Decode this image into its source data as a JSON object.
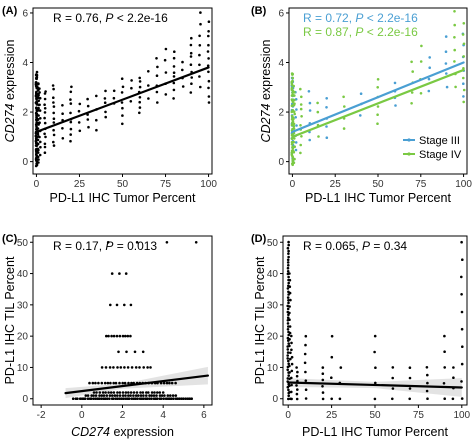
{
  "chart_data": [
    {
      "panel": "(A)",
      "type": "scatter",
      "xlabel": "PD-L1 IHC Tumor Percent",
      "ylabel_italic": "CD274",
      "ylabel_rest": " expression",
      "xlim": [
        -2,
        102
      ],
      "ylim": [
        -0.5,
        6.2
      ],
      "xticks": [
        0,
        25,
        50,
        75,
        100
      ],
      "yticks": [
        0,
        2,
        4,
        6
      ],
      "annotation": {
        "r": "R = 0.76, ",
        "p_label": "P",
        "p_rest": " < 2.2e-16",
        "color": "#000000"
      },
      "grid": false,
      "border": "box",
      "point_color": "#000000",
      "columns": [
        {
          "x": 0,
          "ymin": -0.2,
          "ymax": 3.6,
          "n": 90
        },
        {
          "x": 1,
          "ymin": 0.0,
          "ymax": 3.2,
          "n": 30
        },
        {
          "x": 2,
          "ymin": 0.3,
          "ymax": 3.0,
          "n": 12
        },
        {
          "x": 5,
          "ymin": 0.4,
          "ymax": 2.9,
          "n": 14
        },
        {
          "x": 10,
          "ymin": 0.6,
          "ymax": 3.1,
          "n": 12
        },
        {
          "x": 15,
          "ymin": 1.0,
          "ymax": 2.2,
          "n": 5
        },
        {
          "x": 20,
          "ymin": 0.8,
          "ymax": 3.0,
          "n": 10
        },
        {
          "x": 25,
          "ymin": 1.2,
          "ymax": 2.4,
          "n": 4
        },
        {
          "x": 30,
          "ymin": 1.4,
          "ymax": 2.5,
          "n": 5
        },
        {
          "x": 35,
          "ymin": 1.3,
          "ymax": 2.6,
          "n": 4
        },
        {
          "x": 40,
          "ymin": 1.8,
          "ymax": 2.9,
          "n": 5
        },
        {
          "x": 45,
          "ymin": 2.3,
          "ymax": 2.9,
          "n": 3
        },
        {
          "x": 50,
          "ymin": 1.6,
          "ymax": 3.3,
          "n": 7
        },
        {
          "x": 55,
          "ymin": 2.5,
          "ymax": 3.3,
          "n": 3
        },
        {
          "x": 60,
          "ymin": 2.0,
          "ymax": 3.4,
          "n": 8
        },
        {
          "x": 65,
          "ymin": 2.6,
          "ymax": 3.6,
          "n": 3
        },
        {
          "x": 70,
          "ymin": 2.4,
          "ymax": 4.1,
          "n": 6
        },
        {
          "x": 75,
          "ymin": 2.7,
          "ymax": 4.6,
          "n": 5
        },
        {
          "x": 80,
          "ymin": 2.6,
          "ymax": 4.4,
          "n": 8
        },
        {
          "x": 85,
          "ymin": 3.0,
          "ymax": 4.0,
          "n": 4
        },
        {
          "x": 90,
          "ymin": 2.8,
          "ymax": 5.0,
          "n": 9
        },
        {
          "x": 95,
          "ymin": 3.0,
          "ymax": 6.0,
          "n": 8
        },
        {
          "x": 100,
          "ymin": 2.4,
          "ymax": 5.6,
          "n": 12
        }
      ],
      "fit": [
        {
          "x1": 0,
          "y1": 1.2,
          "x2": 100,
          "y2": 3.8,
          "color": "#000000"
        }
      ]
    },
    {
      "panel": "(B)",
      "type": "scatter",
      "xlabel": "PD-L1 IHC Tumor Percent",
      "ylabel_italic": "CD274",
      "ylabel_rest": " expression",
      "xlim": [
        -2,
        102
      ],
      "ylim": [
        -0.5,
        6.2
      ],
      "xticks": [
        0,
        25,
        50,
        75,
        100
      ],
      "yticks": [
        0,
        2,
        4,
        6
      ],
      "annotations": [
        {
          "r": "R = 0.72, ",
          "p_label": "P",
          "p_rest": " < 2.2e-16",
          "color": "#4a9fd3"
        },
        {
          "r": "R = 0.87, ",
          "p_label": "P",
          "p_rest": " < 2.2e-16",
          "color": "#7ac943"
        }
      ],
      "grid": false,
      "border": "box",
      "legend": {
        "position": "bottom-right",
        "items": [
          {
            "label": "Stage III",
            "color": "#4a9fd3"
          },
          {
            "label": "Stage IV",
            "color": "#7ac943"
          }
        ]
      },
      "series": [
        {
          "name": "Stage III",
          "color": "#4a9fd3",
          "columns": [
            {
              "x": 0,
              "ymin": 0.0,
              "ymax": 3.4,
              "n": 35
            },
            {
              "x": 2,
              "ymin": 0.4,
              "ymax": 2.8,
              "n": 8
            },
            {
              "x": 10,
              "ymin": 0.8,
              "ymax": 2.8,
              "n": 6
            },
            {
              "x": 20,
              "ymin": 1.0,
              "ymax": 2.6,
              "n": 5
            },
            {
              "x": 40,
              "ymin": 1.8,
              "ymax": 2.8,
              "n": 3
            },
            {
              "x": 60,
              "ymin": 2.2,
              "ymax": 3.2,
              "n": 4
            },
            {
              "x": 80,
              "ymin": 2.8,
              "ymax": 4.2,
              "n": 4
            },
            {
              "x": 90,
              "ymin": 3.0,
              "ymax": 5.0,
              "n": 5
            },
            {
              "x": 100,
              "ymin": 2.6,
              "ymax": 5.2,
              "n": 6
            }
          ]
        },
        {
          "name": "Stage IV",
          "color": "#7ac943",
          "columns": [
            {
              "x": 0,
              "ymin": -0.2,
              "ymax": 3.6,
              "n": 55
            },
            {
              "x": 1,
              "ymin": 0.0,
              "ymax": 3.0,
              "n": 20
            },
            {
              "x": 5,
              "ymin": 0.4,
              "ymax": 2.9,
              "n": 10
            },
            {
              "x": 15,
              "ymin": 1.0,
              "ymax": 2.4,
              "n": 4
            },
            {
              "x": 30,
              "ymin": 1.4,
              "ymax": 2.6,
              "n": 4
            },
            {
              "x": 50,
              "ymin": 1.6,
              "ymax": 3.3,
              "n": 6
            },
            {
              "x": 70,
              "ymin": 2.4,
              "ymax": 4.1,
              "n": 5
            },
            {
              "x": 75,
              "ymin": 2.7,
              "ymax": 4.6,
              "n": 4
            },
            {
              "x": 95,
              "ymin": 3.0,
              "ymax": 6.0,
              "n": 7
            },
            {
              "x": 100,
              "ymin": 2.4,
              "ymax": 5.6,
              "n": 8
            }
          ]
        }
      ],
      "fit": [
        {
          "x1": 0,
          "y1": 1.2,
          "x2": 100,
          "y2": 4.0,
          "color": "#4a9fd3"
        },
        {
          "x1": 0,
          "y1": 1.0,
          "x2": 100,
          "y2": 3.7,
          "color": "#7ac943"
        }
      ]
    },
    {
      "panel": "(C)",
      "type": "scatter",
      "xlabel_italic": "CD274",
      "xlabel_rest": " expression",
      "ylabel": "PD-L1 IHC TIL Percent",
      "xlim": [
        -2.4,
        6.4
      ],
      "ylim": [
        -2,
        52
      ],
      "xticks": [
        -2,
        0,
        2,
        4,
        6
      ],
      "yticks": [
        0,
        10,
        20,
        30,
        40,
        50
      ],
      "annotation": {
        "r": "R = 0.17, ",
        "p_label": "P",
        "p_rest": " = 0.013",
        "color": "#000000"
      },
      "grid": false,
      "border": "box",
      "point_color": "#000000",
      "rows": [
        {
          "y": 0,
          "xmin": -0.4,
          "xmax": 5.4,
          "n": 60
        },
        {
          "y": 1,
          "xmin": 0.2,
          "xmax": 4.6,
          "n": 35
        },
        {
          "y": 2,
          "xmin": 0.6,
          "xmax": 4.0,
          "n": 25
        },
        {
          "y": 5,
          "xmin": 0.4,
          "xmax": 4.6,
          "n": 30
        },
        {
          "y": 10,
          "xmin": 1.0,
          "xmax": 3.4,
          "n": 14
        },
        {
          "y": 15,
          "xmin": 1.8,
          "xmax": 3.0,
          "n": 4
        },
        {
          "y": 20,
          "xmin": 1.2,
          "xmax": 2.4,
          "n": 10
        },
        {
          "y": 30,
          "xmin": 1.4,
          "xmax": 2.4,
          "n": 4
        },
        {
          "y": 40,
          "xmin": 1.5,
          "xmax": 2.2,
          "n": 3
        },
        {
          "y": 50,
          "xmin": 1.3,
          "xmax": 5.6,
          "n": 4
        }
      ],
      "fit": [
        {
          "x1": -0.8,
          "y1": 1.8,
          "x2": 6.2,
          "y2": 7.4,
          "color": "#000000"
        }
      ],
      "band": [
        {
          "x": -0.8,
          "lo": 0.2,
          "hi": 3.4
        },
        {
          "x": 2.0,
          "lo": 3.2,
          "hi": 4.8
        },
        {
          "x": 6.2,
          "lo": 4.6,
          "hi": 10.2
        }
      ]
    },
    {
      "panel": "(D)",
      "type": "scatter",
      "xlabel": "PD-L1 IHC Tumor Percent",
      "ylabel": "PD-L1 IHC TIL Percent",
      "xlim": [
        -3,
        103
      ],
      "ylim": [
        -2,
        52
      ],
      "xticks": [
        0,
        25,
        50,
        75,
        100
      ],
      "yticks": [
        0,
        10,
        20,
        30,
        40,
        50
      ],
      "annotation": {
        "r": "R = 0.065, ",
        "p_label": "P",
        "p_rest": " = 0.34",
        "color": "#000000"
      },
      "grid": false,
      "border": "box",
      "point_color": "#000000",
      "columns": [
        {
          "x": 0,
          "ymin": 0,
          "ymax": 50,
          "n": 55
        },
        {
          "x": 1,
          "ymin": 0,
          "ymax": 40,
          "n": 20
        },
        {
          "x": 2,
          "ymin": 0,
          "ymax": 20,
          "n": 10
        },
        {
          "x": 5,
          "ymin": 0,
          "ymax": 10,
          "n": 8
        },
        {
          "x": 10,
          "ymin": 0,
          "ymax": 20,
          "n": 8
        },
        {
          "x": 20,
          "ymin": 0,
          "ymax": 10,
          "n": 6
        },
        {
          "x": 25,
          "ymin": 0,
          "ymax": 20,
          "n": 4
        },
        {
          "x": 30,
          "ymin": 0,
          "ymax": 10,
          "n": 3
        },
        {
          "x": 50,
          "ymin": 0,
          "ymax": 20,
          "n": 5
        },
        {
          "x": 60,
          "ymin": 0,
          "ymax": 10,
          "n": 4
        },
        {
          "x": 70,
          "ymin": 0,
          "ymax": 10,
          "n": 4
        },
        {
          "x": 80,
          "ymin": 0,
          "ymax": 10,
          "n": 5
        },
        {
          "x": 90,
          "ymin": 0,
          "ymax": 20,
          "n": 5
        },
        {
          "x": 95,
          "ymin": 0,
          "ymax": 10,
          "n": 4
        },
        {
          "x": 100,
          "ymin": 0,
          "ymax": 50,
          "n": 10
        }
      ],
      "fit": [
        {
          "x1": 0,
          "y1": 5.2,
          "x2": 100,
          "y2": 3.6,
          "color": "#000000"
        }
      ],
      "band": [
        {
          "x": 0,
          "lo": 3.8,
          "hi": 6.6
        },
        {
          "x": 50,
          "lo": 3.4,
          "hi": 5.4
        },
        {
          "x": 100,
          "lo": 0.6,
          "hi": 6.6
        }
      ]
    }
  ]
}
